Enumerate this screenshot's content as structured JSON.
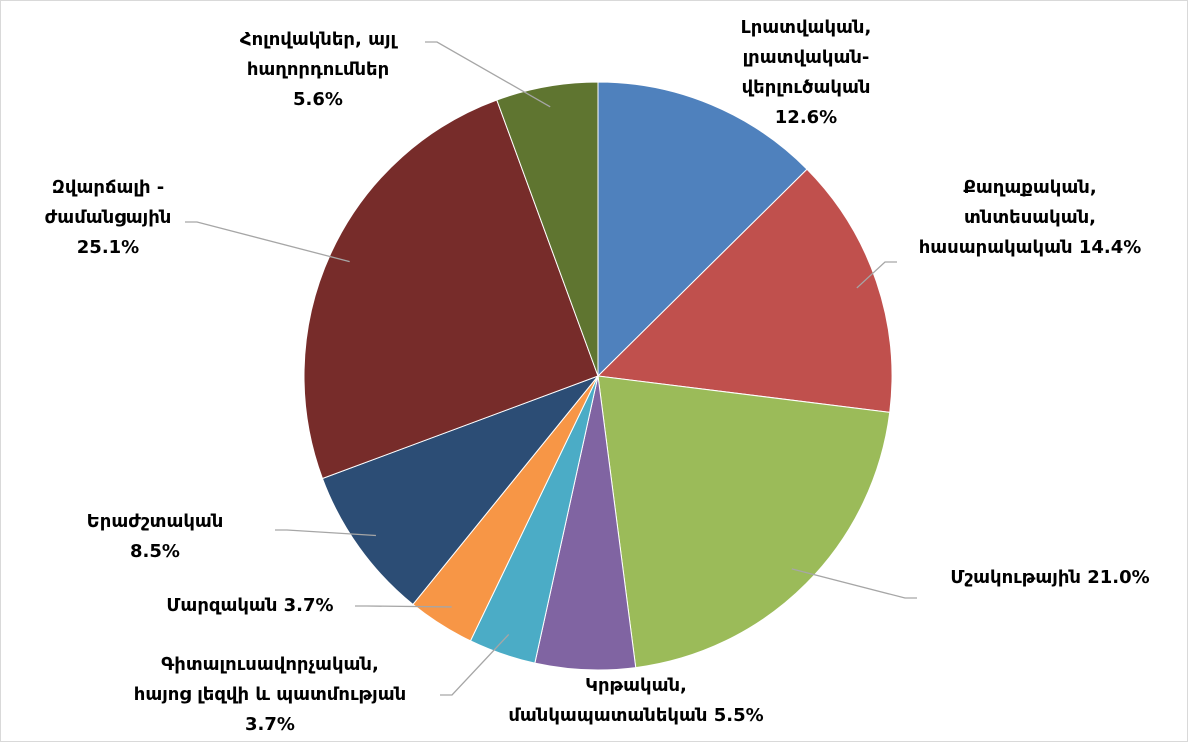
{
  "chart_data": {
    "type": "pie",
    "categories": [
      "Լրատվական,\nլրատվական-\nվերլուծական",
      "Քաղաքական,\nտնտեսական,\nհասարակական",
      "Մշակութային",
      "Կրթական,\nմանկապատանեկան",
      "Գիտալուսավորչական,\nհայոց լեզվի և պատմության",
      "Մարզական",
      "Երաժշտական",
      "Զվարճալի -\nժամանցային",
      "Հոլովակներ, այլ\nհաղորդումներ"
    ],
    "values": [
      12.6,
      14.4,
      21.0,
      5.5,
      3.7,
      3.7,
      8.5,
      25.1,
      5.6
    ],
    "value_labels": [
      "12.6%",
      "14.4%",
      "21.0%",
      "5.5%",
      "3.7%",
      "3.7%",
      "8.5%",
      "25.1%",
      "5.6%"
    ],
    "colors": [
      "#4f81bd",
      "#c0504d",
      "#9bbb59",
      "#8064a2",
      "#4bacc6",
      "#f79646",
      "#2c4d75",
      "#772c2a",
      "#5f7530"
    ]
  }
}
